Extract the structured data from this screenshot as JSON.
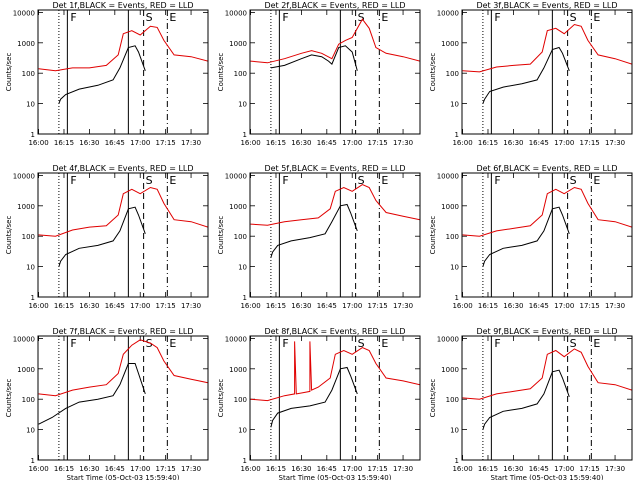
{
  "figure": {
    "y_label": "Counts/sec",
    "x_label": "Start Time (05-Oct-03 15:59:40)",
    "time_ticks": [
      "16:00",
      "16:15",
      "16:30",
      "16:45",
      "17:00",
      "17:15",
      "17:30"
    ],
    "y_ticks": [
      "1",
      "10",
      "100",
      "1000",
      "10000"
    ],
    "marker_labels": [
      "F",
      "S",
      "E"
    ]
  },
  "chart_data": [
    {
      "type": "line",
      "title": "Det 1f,BLACK = Events, RED = LLD",
      "show_xlabel": false,
      "xlim": [
        "15:59:40",
        "17:40"
      ],
      "ylim": [
        1,
        12000
      ],
      "yscale": "log",
      "series": [
        {
          "color": "#000000",
          "x": [
            "16:12",
            "16:13",
            "16:16",
            "16:24",
            "16:35",
            "16:44",
            "16:48",
            "16:53",
            "16:57",
            "16:59",
            "17:03"
          ],
          "y": [
            10,
            14,
            20,
            30,
            40,
            60,
            150,
            700,
            800,
            500,
            120
          ]
        },
        {
          "color": "#e00000",
          "x": [
            "16:00",
            "16:10",
            "16:20",
            "16:30",
            "16:40",
            "16:47",
            "16:50",
            "16:55",
            "17:00",
            "17:06",
            "17:10",
            "17:14",
            "17:20",
            "17:30",
            "17:40"
          ],
          "y": [
            140,
            120,
            150,
            150,
            180,
            400,
            2000,
            2500,
            1800,
            3500,
            3200,
            1200,
            400,
            350,
            250
          ]
        }
      ],
      "markers": [
        {
          "t": "16:12",
          "style": "dotted"
        },
        {
          "t": "16:17",
          "style": "solid"
        },
        {
          "t": "16:53",
          "style": "solid"
        },
        {
          "t": "17:02",
          "style": "dashed"
        },
        {
          "t": "17:16",
          "style": "dashdot"
        }
      ]
    },
    {
      "type": "line",
      "title": "Det 2f,BLACK = Events, RED = LLD",
      "show_xlabel": false,
      "xlim": [
        "15:59:40",
        "17:40"
      ],
      "ylim": [
        1,
        12000
      ],
      "yscale": "log",
      "series": [
        {
          "color": "#000000",
          "x": [
            "16:12",
            "16:20",
            "16:30",
            "16:36",
            "16:42",
            "16:46",
            "16:48",
            "16:52",
            "16:56",
            "17:00",
            "17:03"
          ],
          "y": [
            150,
            180,
            300,
            400,
            350,
            250,
            200,
            700,
            800,
            500,
            120
          ]
        },
        {
          "color": "#e00000",
          "x": [
            "16:00",
            "16:10",
            "16:20",
            "16:30",
            "16:36",
            "16:42",
            "16:48",
            "16:52",
            "16:56",
            "17:00",
            "17:06",
            "17:10",
            "17:14",
            "17:20",
            "17:30",
            "17:40"
          ],
          "y": [
            250,
            220,
            300,
            450,
            550,
            450,
            300,
            900,
            1200,
            1500,
            6000,
            3000,
            700,
            450,
            350,
            250
          ]
        }
      ],
      "markers": [
        {
          "t": "16:12",
          "style": "dotted"
        },
        {
          "t": "16:17",
          "style": "solid"
        },
        {
          "t": "16:53",
          "style": "solid"
        },
        {
          "t": "17:02",
          "style": "dashed"
        },
        {
          "t": "17:16",
          "style": "dashdot"
        }
      ]
    },
    {
      "type": "line",
      "title": "Det 3f,BLACK = Events, RED = LLD",
      "show_xlabel": false,
      "xlim": [
        "15:59:40",
        "17:40"
      ],
      "ylim": [
        1,
        12000
      ],
      "yscale": "log",
      "series": [
        {
          "color": "#000000",
          "x": [
            "16:12",
            "16:13",
            "16:16",
            "16:24",
            "16:35",
            "16:44",
            "16:48",
            "16:53",
            "16:57",
            "16:59",
            "17:03"
          ],
          "y": [
            10,
            14,
            25,
            35,
            45,
            60,
            150,
            600,
            700,
            450,
            120
          ]
        },
        {
          "color": "#e00000",
          "x": [
            "16:00",
            "16:10",
            "16:20",
            "16:30",
            "16:40",
            "16:47",
            "16:50",
            "16:55",
            "17:00",
            "17:06",
            "17:10",
            "17:14",
            "17:20",
            "17:30",
            "17:40"
          ],
          "y": [
            120,
            110,
            160,
            180,
            200,
            500,
            2500,
            3000,
            2000,
            4000,
            3500,
            1200,
            400,
            300,
            200
          ]
        }
      ],
      "markers": [
        {
          "t": "16:12",
          "style": "dotted"
        },
        {
          "t": "16:17",
          "style": "solid"
        },
        {
          "t": "16:53",
          "style": "solid"
        },
        {
          "t": "17:02",
          "style": "dashed"
        },
        {
          "t": "17:16",
          "style": "dashdot"
        }
      ]
    },
    {
      "type": "line",
      "title": "Det 4f,BLACK = Events, RED = LLD",
      "show_xlabel": false,
      "xlim": [
        "15:59:40",
        "17:40"
      ],
      "ylim": [
        1,
        12000
      ],
      "yscale": "log",
      "series": [
        {
          "color": "#000000",
          "x": [
            "16:12",
            "16:13",
            "16:16",
            "16:24",
            "16:35",
            "16:44",
            "16:48",
            "16:53",
            "16:57",
            "16:59",
            "17:03"
          ],
          "y": [
            10,
            15,
            25,
            40,
            50,
            70,
            150,
            800,
            900,
            500,
            120
          ]
        },
        {
          "color": "#e00000",
          "x": [
            "16:00",
            "16:10",
            "16:20",
            "16:30",
            "16:40",
            "16:47",
            "16:50",
            "16:55",
            "17:00",
            "17:06",
            "17:10",
            "17:14",
            "17:20",
            "17:30",
            "17:40"
          ],
          "y": [
            110,
            100,
            160,
            200,
            220,
            500,
            2500,
            3500,
            2500,
            4000,
            3500,
            1200,
            350,
            300,
            200
          ]
        }
      ],
      "markers": [
        {
          "t": "16:12",
          "style": "dotted"
        },
        {
          "t": "16:17",
          "style": "solid"
        },
        {
          "t": "16:53",
          "style": "solid"
        },
        {
          "t": "17:02",
          "style": "dashed"
        },
        {
          "t": "17:16",
          "style": "dashdot"
        }
      ]
    },
    {
      "type": "line",
      "title": "Det 5f,BLACK = Events, RED = LLD",
      "show_xlabel": false,
      "xlim": [
        "15:59:40",
        "17:40"
      ],
      "ylim": [
        1,
        12000
      ],
      "yscale": "log",
      "series": [
        {
          "color": "#000000",
          "x": [
            "16:12",
            "16:13",
            "16:16",
            "16:24",
            "16:35",
            "16:44",
            "16:48",
            "16:53",
            "16:57",
            "16:59",
            "17:03"
          ],
          "y": [
            20,
            30,
            50,
            70,
            90,
            120,
            300,
            1000,
            1100,
            600,
            150
          ]
        },
        {
          "color": "#e00000",
          "x": [
            "16:00",
            "16:10",
            "16:20",
            "16:30",
            "16:40",
            "16:47",
            "16:50",
            "16:55",
            "17:00",
            "17:06",
            "17:10",
            "17:14",
            "17:20",
            "17:30",
            "17:40"
          ],
          "y": [
            250,
            230,
            300,
            350,
            400,
            800,
            3000,
            4000,
            3000,
            5000,
            4000,
            1500,
            600,
            450,
            350
          ]
        }
      ],
      "markers": [
        {
          "t": "16:12",
          "style": "dotted"
        },
        {
          "t": "16:17",
          "style": "solid"
        },
        {
          "t": "16:53",
          "style": "solid"
        },
        {
          "t": "17:02",
          "style": "dashed"
        },
        {
          "t": "17:16",
          "style": "dashdot"
        }
      ]
    },
    {
      "type": "line",
      "title": "Det 6f,BLACK = Events, RED = LLD",
      "show_xlabel": false,
      "xlim": [
        "15:59:40",
        "17:40"
      ],
      "ylim": [
        1,
        12000
      ],
      "yscale": "log",
      "series": [
        {
          "color": "#000000",
          "x": [
            "16:12",
            "16:13",
            "16:16",
            "16:24",
            "16:35",
            "16:44",
            "16:48",
            "16:53",
            "16:57",
            "16:59",
            "17:03"
          ],
          "y": [
            10,
            15,
            25,
            40,
            50,
            70,
            150,
            800,
            900,
            500,
            120
          ]
        },
        {
          "color": "#e00000",
          "x": [
            "16:00",
            "16:10",
            "16:20",
            "16:30",
            "16:40",
            "16:47",
            "16:50",
            "16:55",
            "17:00",
            "17:06",
            "17:10",
            "17:14",
            "17:20",
            "17:30",
            "17:40"
          ],
          "y": [
            110,
            100,
            150,
            180,
            220,
            500,
            2500,
            3500,
            2500,
            4000,
            3500,
            1200,
            350,
            300,
            200
          ]
        }
      ],
      "markers": [
        {
          "t": "16:12",
          "style": "dotted"
        },
        {
          "t": "16:17",
          "style": "solid"
        },
        {
          "t": "16:53",
          "style": "solid"
        },
        {
          "t": "17:02",
          "style": "dashed"
        },
        {
          "t": "17:16",
          "style": "dashdot"
        }
      ]
    },
    {
      "type": "line",
      "title": "Det 7f,BLACK = Events, RED = LLD",
      "show_xlabel": true,
      "xlim": [
        "15:59:40",
        "17:40"
      ],
      "ylim": [
        1,
        12000
      ],
      "yscale": "log",
      "series": [
        {
          "color": "#000000",
          "x": [
            "16:00",
            "16:08",
            "16:16",
            "16:24",
            "16:35",
            "16:44",
            "16:48",
            "16:53",
            "16:57",
            "16:59",
            "17:03"
          ],
          "y": [
            15,
            25,
            50,
            80,
            100,
            130,
            300,
            1500,
            1500,
            700,
            150
          ]
        },
        {
          "color": "#e00000",
          "x": [
            "16:00",
            "16:10",
            "16:20",
            "16:30",
            "16:40",
            "16:47",
            "16:50",
            "16:55",
            "17:00",
            "17:06",
            "17:10",
            "17:14",
            "17:20",
            "17:30",
            "17:40"
          ],
          "y": [
            150,
            130,
            200,
            250,
            300,
            700,
            3000,
            6000,
            9000,
            7000,
            5000,
            1800,
            600,
            450,
            350
          ]
        }
      ],
      "markers": [
        {
          "t": "16:12",
          "style": "dotted"
        },
        {
          "t": "16:17",
          "style": "solid"
        },
        {
          "t": "16:53",
          "style": "solid"
        },
        {
          "t": "17:02",
          "style": "dashed"
        },
        {
          "t": "17:16",
          "style": "dashdot"
        }
      ]
    },
    {
      "type": "line",
      "title": "Det 8f,BLACK = Events, RED = LLD",
      "show_xlabel": true,
      "xlim": [
        "15:59:40",
        "17:40"
      ],
      "ylim": [
        1,
        12000
      ],
      "yscale": "log",
      "series": [
        {
          "color": "#000000",
          "x": [
            "16:12",
            "16:13",
            "16:16",
            "16:24",
            "16:35",
            "16:44",
            "16:48",
            "16:53",
            "16:57",
            "16:59",
            "17:03"
          ],
          "y": [
            12,
            20,
            35,
            50,
            60,
            80,
            200,
            1000,
            1100,
            600,
            150
          ]
        },
        {
          "color": "#e00000",
          "x": [
            "16:00",
            "16:10",
            "16:20",
            "16:26",
            "16:26",
            "16:27",
            "16:30",
            "16:35",
            "16:35",
            "16:36",
            "16:40",
            "16:47",
            "16:50",
            "16:55",
            "17:00",
            "17:06",
            "17:10",
            "17:14",
            "17:20",
            "17:30",
            "17:40"
          ],
          "y": [
            100,
            90,
            130,
            150,
            8000,
            150,
            160,
            180,
            8000,
            200,
            250,
            500,
            3000,
            4000,
            3000,
            5000,
            4000,
            1500,
            500,
            400,
            300
          ]
        }
      ],
      "markers": [
        {
          "t": "16:12",
          "style": "dotted"
        },
        {
          "t": "16:17",
          "style": "solid"
        },
        {
          "t": "16:53",
          "style": "solid"
        },
        {
          "t": "17:02",
          "style": "dashed"
        },
        {
          "t": "17:16",
          "style": "dashdot"
        }
      ]
    },
    {
      "type": "line",
      "title": "Det 9f,BLACK = Events, RED = LLD",
      "show_xlabel": true,
      "xlim": [
        "15:59:40",
        "17:40"
      ],
      "ylim": [
        1,
        12000
      ],
      "yscale": "log",
      "series": [
        {
          "color": "#000000",
          "x": [
            "16:12",
            "16:13",
            "16:16",
            "16:24",
            "16:35",
            "16:44",
            "16:48",
            "16:53",
            "16:57",
            "16:59",
            "17:03"
          ],
          "y": [
            10,
            15,
            25,
            40,
            50,
            70,
            150,
            800,
            900,
            500,
            120
          ]
        },
        {
          "color": "#e00000",
          "x": [
            "16:00",
            "16:10",
            "16:20",
            "16:30",
            "16:40",
            "16:47",
            "16:50",
            "16:55",
            "17:00",
            "17:06",
            "17:10",
            "17:14",
            "17:20",
            "17:30",
            "17:40"
          ],
          "y": [
            110,
            100,
            150,
            180,
            220,
            500,
            3000,
            4000,
            2500,
            4500,
            3500,
            1200,
            350,
            300,
            200
          ]
        }
      ],
      "markers": [
        {
          "t": "16:12",
          "style": "dotted"
        },
        {
          "t": "16:17",
          "style": "solid"
        },
        {
          "t": "16:53",
          "style": "solid"
        },
        {
          "t": "17:02",
          "style": "dashed"
        },
        {
          "t": "17:16",
          "style": "dashdot"
        }
      ]
    }
  ]
}
